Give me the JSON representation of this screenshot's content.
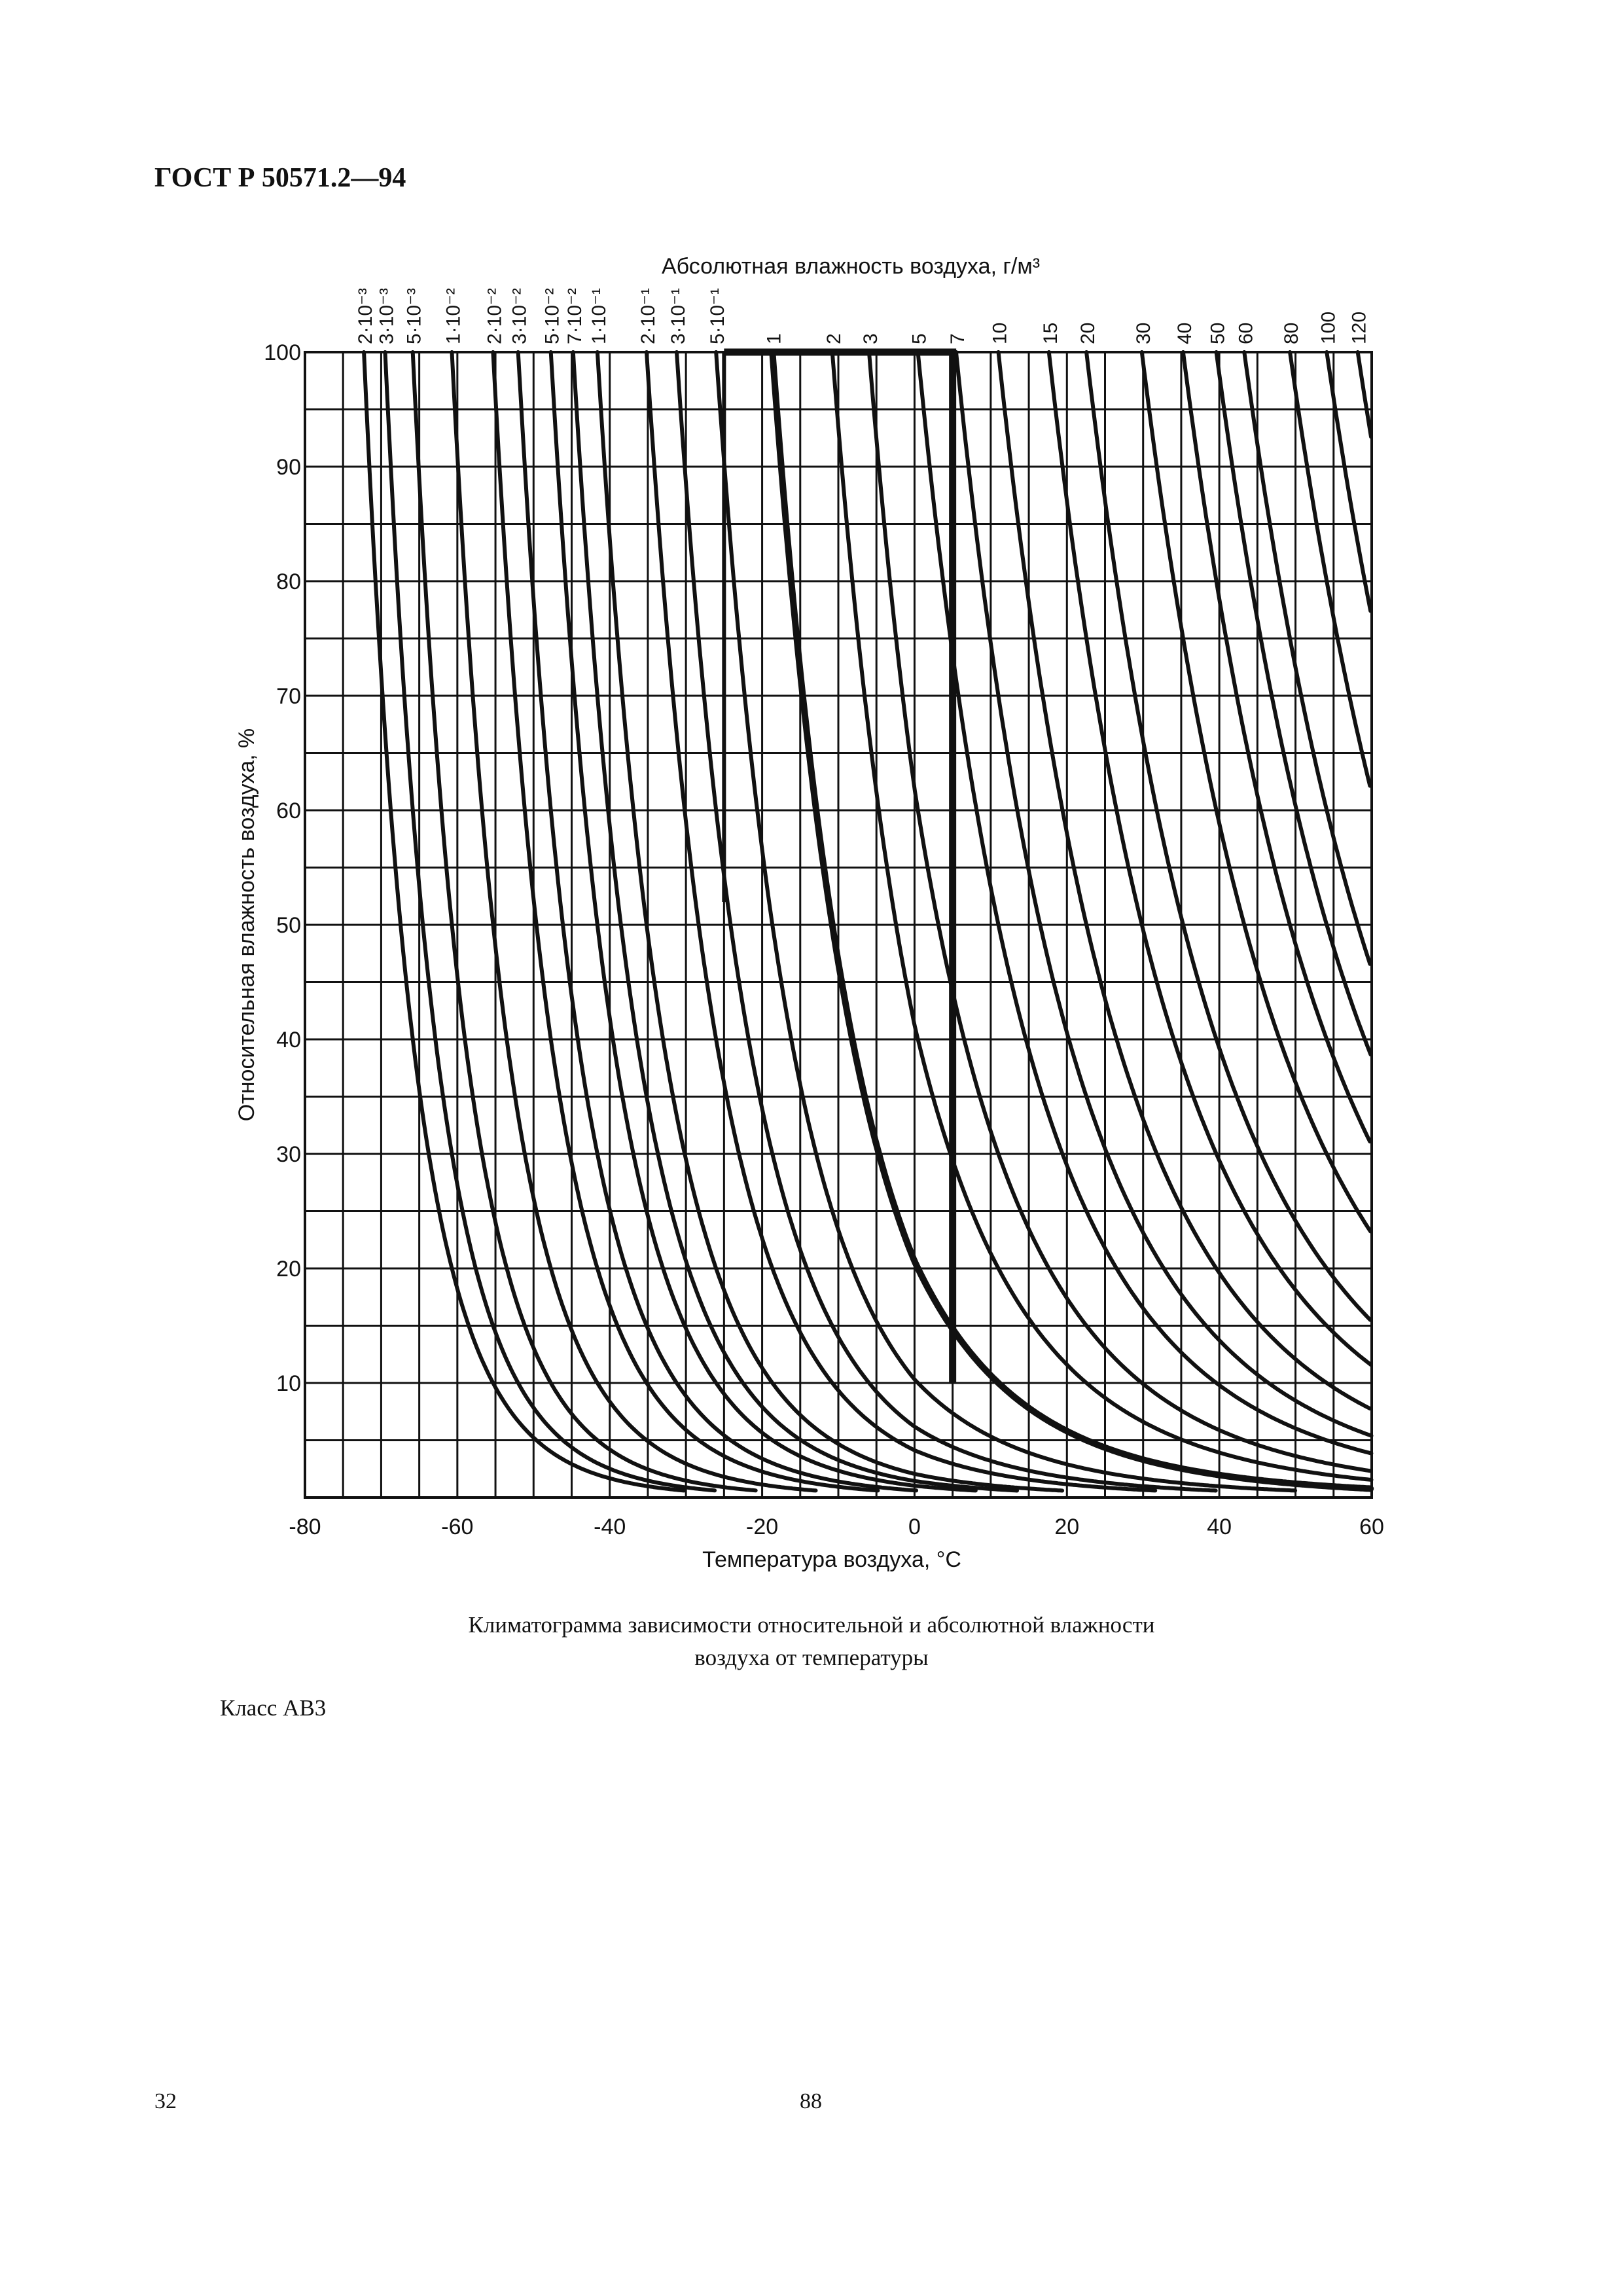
{
  "document": {
    "header": "ГОСТ Р 50571.2—94",
    "caption_line1": "Климатограмма зависимости относительной и абсолютной влажности",
    "caption_line2": "воздуха от температуры",
    "class_label": "Класс АВ3",
    "page_left": "32",
    "page_center": "88"
  },
  "chart_data": {
    "type": "line",
    "title": "Абсолютная влажность воздуха, г/м³",
    "xlabel": "Температура воздуха, °С",
    "ylabel": "Относительная влажность воздуха, %",
    "xlim": [
      -80,
      60
    ],
    "ylim": [
      0,
      100
    ],
    "x_ticks": [
      -80,
      -60,
      -40,
      -20,
      0,
      20,
      40,
      60
    ],
    "y_ticks": [
      10,
      20,
      30,
      40,
      50,
      60,
      70,
      80,
      90,
      100
    ],
    "grid": true,
    "top_axis_unit": "г/м³",
    "series": [
      {
        "label": "2·10⁻³",
        "value": 0.002
      },
      {
        "label": "3·10⁻³",
        "value": 0.003
      },
      {
        "label": "5·10⁻³",
        "value": 0.005
      },
      {
        "label": "1·10⁻²",
        "value": 0.01
      },
      {
        "label": "2·10⁻²",
        "value": 0.02
      },
      {
        "label": "3·10⁻²",
        "value": 0.03
      },
      {
        "label": "5·10⁻²",
        "value": 0.05
      },
      {
        "label": "7·10⁻²",
        "value": 0.07
      },
      {
        "label": "1·10⁻¹",
        "value": 0.1
      },
      {
        "label": "2·10⁻¹",
        "value": 0.2
      },
      {
        "label": "3·10⁻¹",
        "value": 0.3
      },
      {
        "label": "5·10⁻¹",
        "value": 0.5
      },
      {
        "label": "1",
        "value": 1
      },
      {
        "label": "2",
        "value": 2
      },
      {
        "label": "3",
        "value": 3
      },
      {
        "label": "5",
        "value": 5
      },
      {
        "label": "7",
        "value": 7
      },
      {
        "label": "10",
        "value": 10
      },
      {
        "label": "15",
        "value": 15
      },
      {
        "label": "20",
        "value": 20
      },
      {
        "label": "30",
        "value": 30
      },
      {
        "label": "40",
        "value": 40
      },
      {
        "label": "50",
        "value": 50
      },
      {
        "label": "60",
        "value": 60
      },
      {
        "label": "80",
        "value": 80
      },
      {
        "label": "100",
        "value": 100
      },
      {
        "label": "120",
        "value": 120
      }
    ],
    "highlighted_region": {
      "description_shown": false,
      "upper_rh": 100,
      "t_min": -25,
      "t_max": 5,
      "boundary_curve_value": 1,
      "lower_rh": 10
    }
  }
}
